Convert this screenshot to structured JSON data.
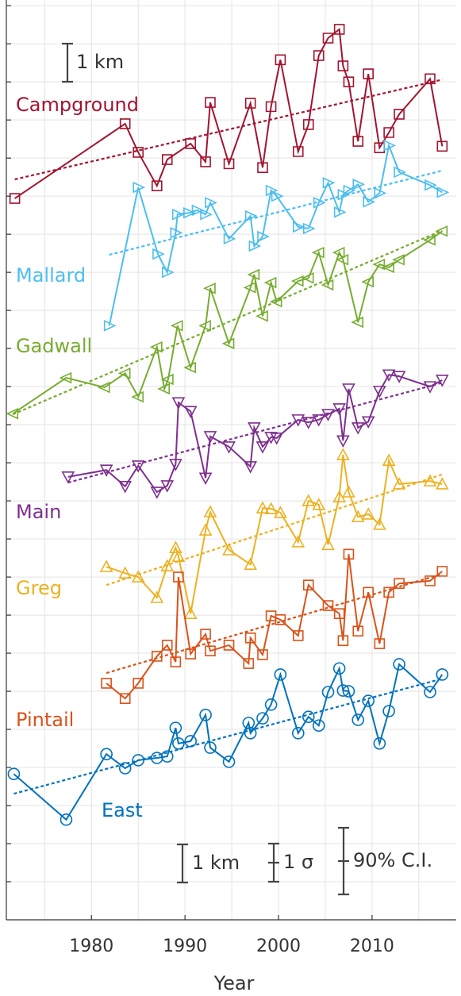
{
  "chart_data": {
    "type": "line",
    "x_label": "Year",
    "xlim": [
      1970.9,
      2019
    ],
    "xticks": [
      1980,
      1990,
      2000,
      2010
    ],
    "xgrid": [
      1975,
      1980,
      1985,
      1990,
      1995,
      2000,
      2005,
      2010,
      2015
    ],
    "ylim": [
      0,
      24.15
    ],
    "yticks": [
      1,
      2,
      3,
      4,
      5,
      6,
      7,
      8,
      9,
      10,
      11,
      12,
      13,
      14,
      15,
      16,
      17,
      18,
      19,
      20,
      21,
      22,
      23,
      24
    ],
    "grid": true,
    "scale_bar": {
      "label": "1 km",
      "length": 1
    },
    "legend_bars": [
      {
        "label": "1 km",
        "length": 1
      },
      {
        "label": "1 σ",
        "length": 1
      },
      {
        "label": "90% C.I.",
        "length": 1.75
      }
    ],
    "series": [
      {
        "name": "Campground",
        "color": "#a2142f",
        "marker": "square",
        "x": [
          1971.8,
          1983.6,
          1985,
          1987,
          1988.1,
          1990.6,
          1992.2,
          1992.7,
          1994.7,
          1997,
          1998.3,
          1999.2,
          2000.2,
          2002.1,
          2003.2,
          2004.3,
          2005.3,
          2006.5,
          2006.9,
          2007.5,
          2008.5,
          2009.6,
          2010.8,
          2011.8,
          2012.9,
          2016.2,
          2017.5
        ],
        "values": [
          18.94,
          20.9,
          20.15,
          19.27,
          19.96,
          20.38,
          19.9,
          21.46,
          19.85,
          21.44,
          19.75,
          21.35,
          22.58,
          20.17,
          20.88,
          22.69,
          23.15,
          23.38,
          22.42,
          22.0,
          20.44,
          22.21,
          20.27,
          20.67,
          21.15,
          22.08,
          20.31
        ],
        "trend": {
          "x": [
            1971.8,
            2017.5
          ],
          "values": [
            19.44,
            22.06
          ]
        }
      },
      {
        "name": "Mallard",
        "color": "#4dbeee",
        "marker": "triangle-right",
        "x": [
          1981.9,
          1985,
          1987.1,
          1988.1,
          1989,
          1989.2,
          1990.4,
          1991.3,
          1992.2,
          1992.7,
          1994.7,
          1997,
          1997.4,
          1998.3,
          1999.2,
          1999.8,
          2002.1,
          2003.2,
          2004.3,
          2005.3,
          2006.5,
          2006.9,
          2007.5,
          2008.5,
          2009.6,
          2010.8,
          2011.8,
          2012.9,
          2016.2,
          2017.5
        ],
        "values": [
          15.6,
          19.23,
          17.48,
          17.0,
          18.04,
          18.52,
          18.56,
          18.63,
          18.52,
          18.83,
          17.88,
          18.48,
          17.69,
          17.94,
          19.15,
          19.0,
          18.19,
          18.15,
          18.83,
          19.35,
          18.58,
          19.04,
          19.15,
          19.31,
          18.85,
          19.08,
          20.33,
          19.63,
          19.29,
          19.1
        ],
        "trend": {
          "x": [
            1981.9,
            2017.5
          ],
          "values": [
            17.46,
            19.67
          ]
        }
      },
      {
        "name": "Gadwall",
        "color": "#77ac30",
        "marker": "triangle-left",
        "x": [
          1971.6,
          1977.3,
          1981.4,
          1983.6,
          1985,
          1987,
          1987.8,
          1988.2,
          1989.2,
          1990.6,
          1992.2,
          1992.7,
          1994.7,
          1997,
          1997.4,
          1998.3,
          1999.2,
          1999.8,
          2002.1,
          2003.2,
          2004.3,
          2005.3,
          2006.5,
          2006.9,
          2008.5,
          2009.6,
          2010.8,
          2011.8,
          2012.9,
          2016.2,
          2017.5
        ],
        "values": [
          13.29,
          14.23,
          13.98,
          14.35,
          13.73,
          15.04,
          13.94,
          14.19,
          15.6,
          14.5,
          15.6,
          16.58,
          15.13,
          16.6,
          16.94,
          15.85,
          16.73,
          16.23,
          16.77,
          16.85,
          17.52,
          16.67,
          17.52,
          17.33,
          15.69,
          16.75,
          17.21,
          17.13,
          17.33,
          17.85,
          18.08
        ],
        "trend": {
          "x": [
            1971.6,
            2017.5
          ],
          "values": [
            13.27,
            18.1
          ]
        }
      },
      {
        "name": "Main",
        "color": "#7e2f8e",
        "marker": "triangle-down",
        "x": [
          1977.5,
          1981.6,
          1983.6,
          1985,
          1987,
          1988.1,
          1989,
          1989.3,
          1990.6,
          1992.2,
          1992.7,
          1994.7,
          1997,
          1997.4,
          1998.3,
          1999.2,
          1999.8,
          2002.1,
          2003.2,
          2004.3,
          2005.3,
          2006.5,
          2006.9,
          2007.5,
          2008.5,
          2009.6,
          2010.8,
          2011.8,
          2012.9,
          2016.2,
          2017.5
        ],
        "values": [
          11.63,
          11.81,
          11.38,
          11.92,
          11.23,
          11.4,
          11.96,
          13.58,
          13.35,
          11.6,
          12.69,
          12.42,
          11.9,
          12.92,
          12.42,
          12.67,
          12.65,
          13.13,
          13.06,
          13.13,
          13.27,
          13.42,
          12.58,
          13.94,
          12.92,
          13.08,
          13.88,
          14.31,
          14.27,
          14.0,
          14.17
        ],
        "trend": {
          "x": [
            1977.5,
            2017.5
          ],
          "values": [
            11.48,
            14.1
          ]
        }
      },
      {
        "name": "Greg",
        "color": "#edb120",
        "marker": "triangle-up",
        "x": [
          1981.6,
          1983.6,
          1985,
          1987,
          1988.1,
          1989,
          1989.3,
          1990.6,
          1992.2,
          1992.7,
          1994.7,
          1997,
          1998.3,
          1999.2,
          2000.2,
          2002.1,
          2003.2,
          2004.3,
          2005.3,
          2006.5,
          2006.9,
          2007.5,
          2008.5,
          2009.6,
          2010.8,
          2011.8,
          2012.9,
          2016.2,
          2017.5
        ],
        "values": [
          9.27,
          9.1,
          9.0,
          8.46,
          9.29,
          9.77,
          9.54,
          8.04,
          10.23,
          10.71,
          9.71,
          9.33,
          10.81,
          10.79,
          10.69,
          9.92,
          11.0,
          10.9,
          9.85,
          11.1,
          12.21,
          11.23,
          10.58,
          10.65,
          10.38,
          12.06,
          11.44,
          11.52,
          11.44
        ],
        "trend": {
          "x": [
            1981.6,
            2017.5
          ],
          "values": [
            8.79,
            11.69
          ]
        }
      },
      {
        "name": "Pintail",
        "color": "#d95319",
        "marker": "square",
        "x": [
          1981.6,
          1983.6,
          1985,
          1987,
          1988.1,
          1989,
          1989.3,
          1990.6,
          1992.2,
          1992.7,
          1994.7,
          1996.8,
          1997,
          1998.3,
          1999.2,
          2000.2,
          2002.1,
          2003.2,
          2005.3,
          2006.5,
          2006.9,
          2007.5,
          2008.5,
          2009.6,
          2010.8,
          2011.8,
          2012.9,
          2016.2,
          2017.5
        ],
        "values": [
          6.21,
          5.81,
          6.21,
          6.92,
          7.21,
          6.77,
          9.0,
          6.98,
          7.5,
          7.06,
          7.21,
          6.73,
          7.4,
          6.96,
          7.98,
          7.88,
          7.46,
          8.79,
          8.25,
          8.04,
          7.33,
          9.6,
          7.58,
          8.6,
          7.25,
          8.6,
          8.83,
          8.9,
          9.15
        ],
        "trend": {
          "x": [
            1981.6,
            2017.5
          ],
          "values": [
            6.48,
            9.08
          ]
        }
      },
      {
        "name": "East",
        "color": "#0072bd",
        "marker": "circle",
        "x": [
          1971.7,
          1977.3,
          1981.6,
          1983.6,
          1985,
          1987,
          1988.1,
          1989,
          1989.3,
          1990.6,
          1992.2,
          1992.7,
          1994.7,
          1996.8,
          1997,
          1998.3,
          1999.2,
          2000.2,
          2002.1,
          2003.2,
          2004.3,
          2005.3,
          2006.5,
          2006.9,
          2007.5,
          2008.5,
          2009.6,
          2010.8,
          2011.8,
          2012.9,
          2016.2,
          2017.5
        ],
        "values": [
          3.83,
          2.63,
          4.35,
          3.98,
          4.19,
          4.25,
          4.29,
          5.04,
          4.63,
          4.69,
          5.38,
          4.52,
          4.15,
          5.17,
          4.9,
          5.29,
          5.65,
          6.44,
          4.9,
          5.33,
          5.1,
          5.98,
          6.6,
          6.02,
          6.0,
          5.25,
          5.75,
          4.63,
          5.48,
          6.71,
          5.98,
          6.44
        ],
        "trend": {
          "x": [
            1971.7,
            2017.5
          ],
          "values": [
            3.31,
            6.33
          ]
        }
      }
    ]
  }
}
